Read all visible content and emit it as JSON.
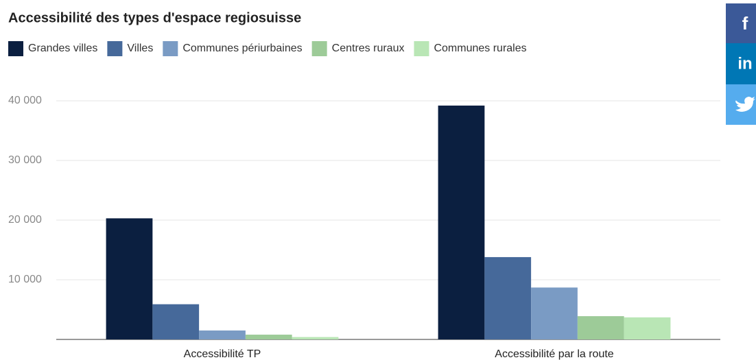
{
  "chart_data": {
    "type": "bar",
    "title": "Accessibilité des types d'espace regiosuisse",
    "categories": [
      "Accessibilité TP",
      "Accessibilité par la route"
    ],
    "series": [
      {
        "name": "Grandes villes",
        "color": "#0b1f40",
        "values": [
          20300,
          39200
        ]
      },
      {
        "name": "Villes",
        "color": "#46699a",
        "values": [
          5900,
          13800
        ]
      },
      {
        "name": "Communes périurbaines",
        "color": "#7a9bc4",
        "values": [
          1500,
          8700
        ]
      },
      {
        "name": "Centres ruraux",
        "color": "#9dcb98",
        "values": [
          800,
          3900
        ]
      },
      {
        "name": "Communes rurales",
        "color": "#b9e6b5",
        "values": [
          400,
          3700
        ]
      }
    ],
    "ylim": [
      0,
      40000
    ],
    "yticks": [
      {
        "value": 10000,
        "label": "10 000"
      },
      {
        "value": 20000,
        "label": "20 000"
      },
      {
        "value": 30000,
        "label": "30 000"
      },
      {
        "value": 40000,
        "label": "40 000"
      }
    ],
    "grid": true,
    "legend": "top"
  },
  "social": [
    "f",
    "in"
  ]
}
